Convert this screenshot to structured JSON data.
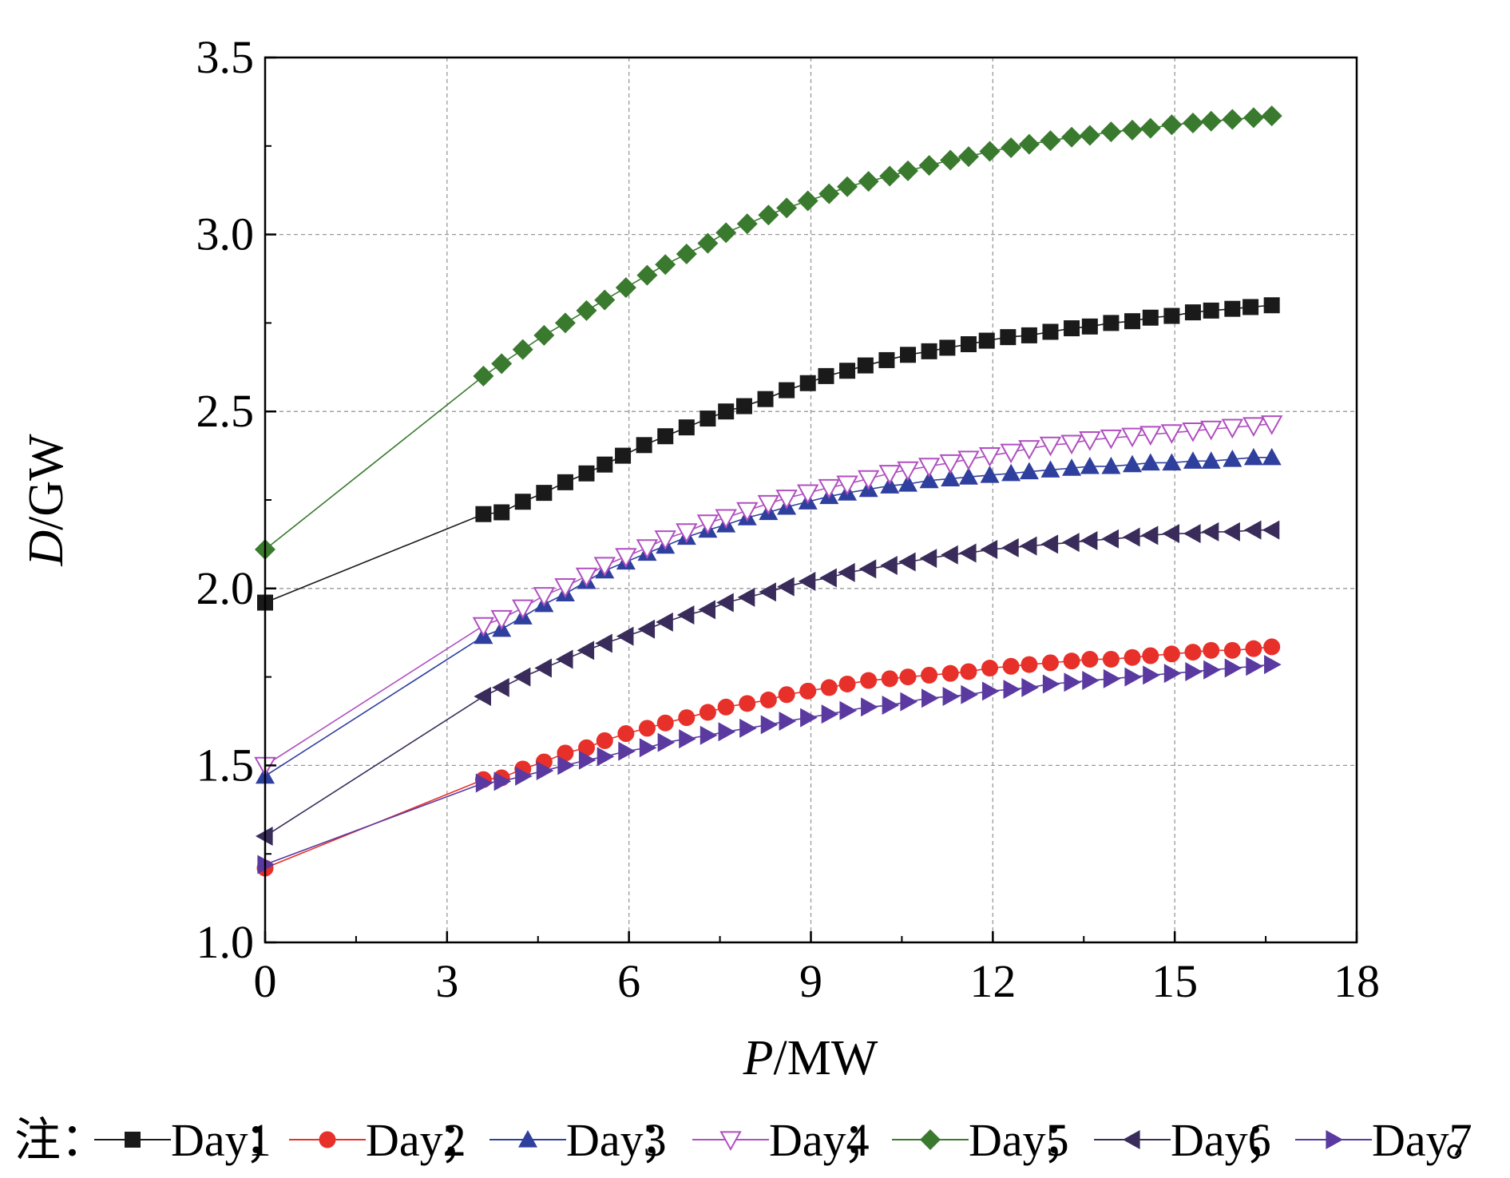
{
  "chart_data": {
    "type": "line",
    "xlabel": {
      "italic": "P",
      "rest": "/MW"
    },
    "ylabel": {
      "italic": "D",
      "rest": "/GW"
    },
    "xlim": [
      0,
      18
    ],
    "ylim": [
      1.0,
      3.5
    ],
    "x_ticks": [
      "0",
      "3",
      "6",
      "9",
      "12",
      "15",
      "18"
    ],
    "y_ticks": [
      "1.0",
      "1.5",
      "2.0",
      "2.5",
      "3.0",
      "3.5"
    ],
    "grid": true,
    "legend": {
      "prefix": "注：",
      "separator": "；",
      "terminator": "。",
      "placement": "bottom"
    },
    "series": [
      {
        "name": "Day1",
        "color": "#1a1a1a",
        "marker": "square",
        "points": [
          [
            0,
            1.96
          ],
          [
            3.6,
            2.21
          ],
          [
            3.9,
            2.215
          ],
          [
            4.25,
            2.245
          ],
          [
            4.6,
            2.27
          ],
          [
            4.95,
            2.3
          ],
          [
            5.3,
            2.325
          ],
          [
            5.6,
            2.35
          ],
          [
            5.9,
            2.375
          ],
          [
            6.25,
            2.405
          ],
          [
            6.6,
            2.43
          ],
          [
            6.95,
            2.455
          ],
          [
            7.3,
            2.48
          ],
          [
            7.6,
            2.5
          ],
          [
            7.9,
            2.515
          ],
          [
            8.25,
            2.535
          ],
          [
            8.6,
            2.56
          ],
          [
            8.95,
            2.58
          ],
          [
            9.25,
            2.6
          ],
          [
            9.6,
            2.615
          ],
          [
            9.9,
            2.63
          ],
          [
            10.25,
            2.645
          ],
          [
            10.6,
            2.66
          ],
          [
            10.95,
            2.67
          ],
          [
            11.25,
            2.68
          ],
          [
            11.6,
            2.69
          ],
          [
            11.9,
            2.7
          ],
          [
            12.25,
            2.71
          ],
          [
            12.6,
            2.715
          ],
          [
            12.95,
            2.725
          ],
          [
            13.3,
            2.735
          ],
          [
            13.6,
            2.74
          ],
          [
            13.95,
            2.75
          ],
          [
            14.3,
            2.755
          ],
          [
            14.6,
            2.765
          ],
          [
            14.95,
            2.77
          ],
          [
            15.3,
            2.78
          ],
          [
            15.6,
            2.785
          ],
          [
            15.95,
            2.79
          ],
          [
            16.25,
            2.795
          ],
          [
            16.6,
            2.8
          ]
        ]
      },
      {
        "name": "Day2",
        "color": "#e8302a",
        "marker": "circle",
        "points": [
          [
            0,
            1.21
          ],
          [
            3.6,
            1.46
          ],
          [
            3.9,
            1.465
          ],
          [
            4.25,
            1.49
          ],
          [
            4.6,
            1.51
          ],
          [
            4.95,
            1.535
          ],
          [
            5.3,
            1.55
          ],
          [
            5.6,
            1.57
          ],
          [
            5.95,
            1.59
          ],
          [
            6.3,
            1.605
          ],
          [
            6.6,
            1.62
          ],
          [
            6.95,
            1.635
          ],
          [
            7.3,
            1.65
          ],
          [
            7.6,
            1.665
          ],
          [
            7.95,
            1.675
          ],
          [
            8.3,
            1.685
          ],
          [
            8.6,
            1.7
          ],
          [
            8.95,
            1.71
          ],
          [
            9.3,
            1.72
          ],
          [
            9.6,
            1.73
          ],
          [
            9.95,
            1.74
          ],
          [
            10.3,
            1.745
          ],
          [
            10.6,
            1.75
          ],
          [
            10.95,
            1.755
          ],
          [
            11.3,
            1.76
          ],
          [
            11.6,
            1.765
          ],
          [
            11.95,
            1.775
          ],
          [
            12.3,
            1.78
          ],
          [
            12.6,
            1.785
          ],
          [
            12.95,
            1.79
          ],
          [
            13.3,
            1.795
          ],
          [
            13.6,
            1.8
          ],
          [
            13.95,
            1.8
          ],
          [
            14.3,
            1.805
          ],
          [
            14.6,
            1.81
          ],
          [
            14.95,
            1.815
          ],
          [
            15.3,
            1.82
          ],
          [
            15.6,
            1.825
          ],
          [
            15.95,
            1.825
          ],
          [
            16.3,
            1.83
          ],
          [
            16.6,
            1.835
          ]
        ]
      },
      {
        "name": "Day3",
        "color": "#2f3f9e",
        "marker": "triangle-up",
        "points": [
          [
            0,
            1.47
          ],
          [
            3.6,
            1.865
          ],
          [
            3.9,
            1.885
          ],
          [
            4.25,
            1.92
          ],
          [
            4.6,
            1.955
          ],
          [
            4.95,
            1.985
          ],
          [
            5.3,
            2.02
          ],
          [
            5.6,
            2.05
          ],
          [
            5.95,
            2.075
          ],
          [
            6.3,
            2.1
          ],
          [
            6.6,
            2.12
          ],
          [
            6.95,
            2.145
          ],
          [
            7.3,
            2.165
          ],
          [
            7.6,
            2.18
          ],
          [
            7.95,
            2.2
          ],
          [
            8.3,
            2.215
          ],
          [
            8.6,
            2.23
          ],
          [
            8.95,
            2.245
          ],
          [
            9.3,
            2.26
          ],
          [
            9.6,
            2.27
          ],
          [
            9.95,
            2.28
          ],
          [
            10.3,
            2.29
          ],
          [
            10.6,
            2.295
          ],
          [
            10.95,
            2.305
          ],
          [
            11.3,
            2.31
          ],
          [
            11.6,
            2.315
          ],
          [
            11.95,
            2.32
          ],
          [
            12.3,
            2.325
          ],
          [
            12.6,
            2.33
          ],
          [
            12.95,
            2.335
          ],
          [
            13.3,
            2.34
          ],
          [
            13.6,
            2.345
          ],
          [
            13.95,
            2.345
          ],
          [
            14.3,
            2.35
          ],
          [
            14.6,
            2.355
          ],
          [
            14.95,
            2.355
          ],
          [
            15.3,
            2.36
          ],
          [
            15.6,
            2.36
          ],
          [
            15.95,
            2.365
          ],
          [
            16.3,
            2.37
          ],
          [
            16.6,
            2.37
          ]
        ]
      },
      {
        "name": "Day4",
        "color": "#b04fc0",
        "marker": "triangle-down-open",
        "points": [
          [
            0,
            1.5
          ],
          [
            3.6,
            1.895
          ],
          [
            3.9,
            1.915
          ],
          [
            4.25,
            1.945
          ],
          [
            4.6,
            1.98
          ],
          [
            4.95,
            2.005
          ],
          [
            5.3,
            2.035
          ],
          [
            5.6,
            2.065
          ],
          [
            5.95,
            2.09
          ],
          [
            6.3,
            2.115
          ],
          [
            6.6,
            2.14
          ],
          [
            6.95,
            2.16
          ],
          [
            7.3,
            2.185
          ],
          [
            7.6,
            2.2
          ],
          [
            7.95,
            2.22
          ],
          [
            8.3,
            2.24
          ],
          [
            8.6,
            2.255
          ],
          [
            8.95,
            2.27
          ],
          [
            9.3,
            2.285
          ],
          [
            9.6,
            2.295
          ],
          [
            9.95,
            2.31
          ],
          [
            10.3,
            2.325
          ],
          [
            10.6,
            2.335
          ],
          [
            10.95,
            2.345
          ],
          [
            11.3,
            2.355
          ],
          [
            11.6,
            2.365
          ],
          [
            11.95,
            2.375
          ],
          [
            12.3,
            2.385
          ],
          [
            12.6,
            2.395
          ],
          [
            12.95,
            2.405
          ],
          [
            13.3,
            2.41
          ],
          [
            13.6,
            2.42
          ],
          [
            13.95,
            2.425
          ],
          [
            14.3,
            2.43
          ],
          [
            14.6,
            2.435
          ],
          [
            14.95,
            2.44
          ],
          [
            15.3,
            2.445
          ],
          [
            15.6,
            2.45
          ],
          [
            15.95,
            2.455
          ],
          [
            16.3,
            2.46
          ],
          [
            16.6,
            2.465
          ]
        ]
      },
      {
        "name": "Day5",
        "color": "#3a7a2f",
        "marker": "diamond",
        "points": [
          [
            0,
            2.11
          ],
          [
            3.6,
            2.6
          ],
          [
            3.9,
            2.635
          ],
          [
            4.25,
            2.675
          ],
          [
            4.6,
            2.715
          ],
          [
            4.95,
            2.75
          ],
          [
            5.3,
            2.785
          ],
          [
            5.6,
            2.815
          ],
          [
            5.95,
            2.85
          ],
          [
            6.3,
            2.885
          ],
          [
            6.6,
            2.915
          ],
          [
            6.95,
            2.945
          ],
          [
            7.3,
            2.975
          ],
          [
            7.6,
            3.005
          ],
          [
            7.95,
            3.03
          ],
          [
            8.3,
            3.055
          ],
          [
            8.6,
            3.075
          ],
          [
            8.95,
            3.095
          ],
          [
            9.3,
            3.115
          ],
          [
            9.6,
            3.135
          ],
          [
            9.95,
            3.15
          ],
          [
            10.3,
            3.165
          ],
          [
            10.6,
            3.18
          ],
          [
            10.95,
            3.195
          ],
          [
            11.3,
            3.21
          ],
          [
            11.6,
            3.22
          ],
          [
            11.95,
            3.235
          ],
          [
            12.3,
            3.245
          ],
          [
            12.6,
            3.255
          ],
          [
            12.95,
            3.265
          ],
          [
            13.3,
            3.275
          ],
          [
            13.6,
            3.28
          ],
          [
            13.95,
            3.29
          ],
          [
            14.3,
            3.295
          ],
          [
            14.6,
            3.3
          ],
          [
            14.95,
            3.31
          ],
          [
            15.3,
            3.315
          ],
          [
            15.6,
            3.32
          ],
          [
            15.95,
            3.325
          ],
          [
            16.3,
            3.33
          ],
          [
            16.6,
            3.335
          ]
        ]
      },
      {
        "name": "Day6",
        "color": "#3a2c5a",
        "marker": "triangle-left",
        "points": [
          [
            0,
            1.3
          ],
          [
            3.6,
            1.695
          ],
          [
            3.9,
            1.72
          ],
          [
            4.25,
            1.75
          ],
          [
            4.6,
            1.775
          ],
          [
            4.95,
            1.8
          ],
          [
            5.3,
            1.825
          ],
          [
            5.6,
            1.845
          ],
          [
            5.95,
            1.865
          ],
          [
            6.3,
            1.885
          ],
          [
            6.6,
            1.905
          ],
          [
            6.95,
            1.925
          ],
          [
            7.3,
            1.94
          ],
          [
            7.6,
            1.96
          ],
          [
            7.95,
            1.975
          ],
          [
            8.3,
            1.99
          ],
          [
            8.6,
            2.005
          ],
          [
            8.95,
            2.02
          ],
          [
            9.3,
            2.03
          ],
          [
            9.6,
            2.045
          ],
          [
            9.95,
            2.055
          ],
          [
            10.3,
            2.065
          ],
          [
            10.6,
            2.075
          ],
          [
            10.95,
            2.085
          ],
          [
            11.3,
            2.095
          ],
          [
            11.6,
            2.1
          ],
          [
            11.95,
            2.11
          ],
          [
            12.3,
            2.115
          ],
          [
            12.6,
            2.12
          ],
          [
            12.95,
            2.125
          ],
          [
            13.3,
            2.13
          ],
          [
            13.6,
            2.135
          ],
          [
            13.95,
            2.14
          ],
          [
            14.3,
            2.145
          ],
          [
            14.6,
            2.15
          ],
          [
            14.95,
            2.155
          ],
          [
            15.3,
            2.155
          ],
          [
            15.6,
            2.16
          ],
          [
            15.95,
            2.16
          ],
          [
            16.3,
            2.165
          ],
          [
            16.6,
            2.165
          ]
        ]
      },
      {
        "name": "Day7",
        "color": "#5a3aa0",
        "marker": "triangle-right",
        "points": [
          [
            0,
            1.22
          ],
          [
            3.6,
            1.45
          ],
          [
            3.9,
            1.455
          ],
          [
            4.25,
            1.47
          ],
          [
            4.6,
            1.485
          ],
          [
            4.95,
            1.5
          ],
          [
            5.3,
            1.515
          ],
          [
            5.6,
            1.525
          ],
          [
            5.95,
            1.54
          ],
          [
            6.3,
            1.55
          ],
          [
            6.6,
            1.565
          ],
          [
            6.95,
            1.575
          ],
          [
            7.3,
            1.585
          ],
          [
            7.6,
            1.595
          ],
          [
            7.95,
            1.605
          ],
          [
            8.3,
            1.615
          ],
          [
            8.6,
            1.625
          ],
          [
            8.95,
            1.635
          ],
          [
            9.3,
            1.645
          ],
          [
            9.6,
            1.655
          ],
          [
            9.95,
            1.665
          ],
          [
            10.3,
            1.67
          ],
          [
            10.6,
            1.68
          ],
          [
            10.95,
            1.69
          ],
          [
            11.3,
            1.695
          ],
          [
            11.6,
            1.7
          ],
          [
            11.95,
            1.71
          ],
          [
            12.3,
            1.715
          ],
          [
            12.6,
            1.72
          ],
          [
            12.95,
            1.73
          ],
          [
            13.3,
            1.735
          ],
          [
            13.6,
            1.74
          ],
          [
            13.95,
            1.745
          ],
          [
            14.3,
            1.75
          ],
          [
            14.6,
            1.755
          ],
          [
            14.95,
            1.76
          ],
          [
            15.3,
            1.765
          ],
          [
            15.6,
            1.77
          ],
          [
            15.95,
            1.775
          ],
          [
            16.3,
            1.78
          ],
          [
            16.6,
            1.785
          ]
        ]
      }
    ]
  }
}
